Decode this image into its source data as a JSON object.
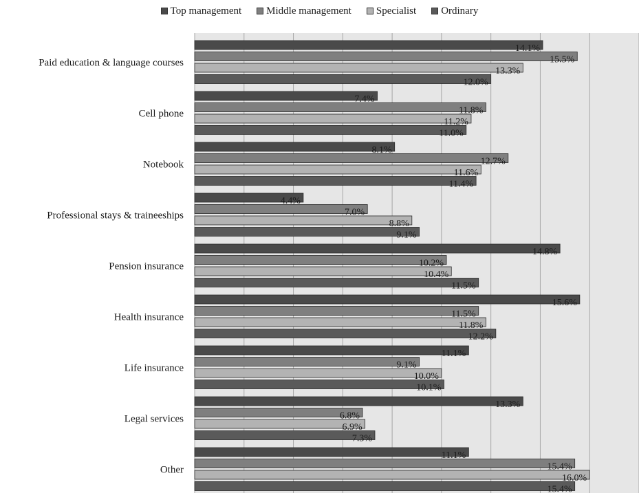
{
  "chart_data": {
    "type": "bar",
    "orientation": "horizontal",
    "categories": [
      "Paid education & language courses",
      "Cell phone",
      "Notebook",
      "Professional stays & traineeships",
      "Pension insurance",
      "Health insurance",
      "Life insurance",
      "Legal services",
      "Other"
    ],
    "series": [
      {
        "name": "Top management",
        "color": "#4a4a4a",
        "values": [
          14.1,
          7.4,
          8.1,
          4.4,
          14.8,
          15.6,
          11.1,
          13.3,
          11.1
        ]
      },
      {
        "name": "Middle management",
        "color": "#7f7f7f",
        "values": [
          15.5,
          11.8,
          12.7,
          7.0,
          10.2,
          11.5,
          9.1,
          6.8,
          15.4
        ]
      },
      {
        "name": "Specialist",
        "color": "#b3b3b3",
        "values": [
          13.3,
          11.2,
          11.6,
          8.8,
          10.4,
          11.8,
          10.0,
          6.9,
          16.0
        ]
      },
      {
        "name": "Ordinary",
        "color": "#5a5a5a",
        "values": [
          12.0,
          11.0,
          11.4,
          9.1,
          11.5,
          12.2,
          10.1,
          7.3,
          15.4
        ]
      }
    ],
    "value_labels": [
      [
        "14.1%",
        "7.4%",
        "8.1%",
        "4.4%",
        "14.8%",
        "15.6%",
        "11.1%",
        "13.3%",
        "11.1%"
      ],
      [
        "15.5%",
        "11.8%",
        "12.7%",
        "7.0%",
        "10.2%",
        "11.5%",
        "9.1%",
        "6.8%",
        "15.4%"
      ],
      [
        "13.3%",
        "11.2%",
        "11.6%",
        "8.8%",
        "10.4%",
        "11.8%",
        "10.0%",
        "6.9%",
        "16.0%"
      ],
      [
        "12.0%",
        "11.0%",
        "11.4%",
        "9.1%",
        "11.5%",
        "12.2%",
        "10.1%",
        "7.3%",
        "15.4%"
      ]
    ],
    "xlim": [
      0,
      18
    ],
    "grid": true,
    "legend_position": "top",
    "plot_background": "#e6e6e6"
  }
}
